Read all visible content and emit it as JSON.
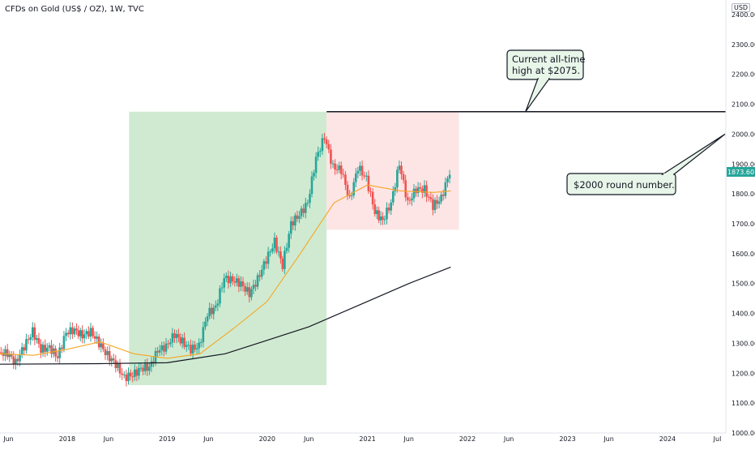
{
  "header": {
    "title": "CFDs on Gold (US$ / OZ), 1W, TVC",
    "currency_badge": "USD"
  },
  "colors": {
    "up": "#26a69a",
    "down": "#ef5350",
    "ma_short": "#f5a623",
    "ma_long": "#131722",
    "green_zone": "#c8e6c9",
    "red_zone": "#fde0e0",
    "callout_fill": "#e8f5e9",
    "price_label_bg": "#26a69a"
  },
  "chart_data": {
    "type": "candlestick",
    "title": "CFDs on Gold (US$ / OZ), 1W, TVC",
    "ylim": [
      1000,
      2400
    ],
    "y_ticks": [
      "1000.00",
      "1100.00",
      "1200.00",
      "1300.00",
      "1400.00",
      "1500.00",
      "1600.00",
      "1700.00",
      "1800.00",
      "1900.00",
      "2000.00",
      "2100.00",
      "2200.00",
      "2300.00",
      "2400.00"
    ],
    "y_tick_values": [
      1000,
      1100,
      1200,
      1300,
      1400,
      1500,
      1600,
      1700,
      1800,
      1900,
      2000,
      2100,
      2200,
      2300,
      2400
    ],
    "x_start": "2017-05-01",
    "x_end": "2024-08-01",
    "x_ticks": [
      {
        "label": "Jun",
        "date": "2017-06-01"
      },
      {
        "label": "2018",
        "date": "2018-01-01"
      },
      {
        "label": "Jun",
        "date": "2018-06-01"
      },
      {
        "label": "2019",
        "date": "2019-01-01"
      },
      {
        "label": "Jun",
        "date": "2019-06-01"
      },
      {
        "label": "2020",
        "date": "2020-01-01"
      },
      {
        "label": "Jun",
        "date": "2020-06-01"
      },
      {
        "label": "2021",
        "date": "2021-01-01"
      },
      {
        "label": "Jun",
        "date": "2021-06-01"
      },
      {
        "label": "2022",
        "date": "2022-01-01"
      },
      {
        "label": "Jun",
        "date": "2022-06-01"
      },
      {
        "label": "2023",
        "date": "2023-01-01"
      },
      {
        "label": "Jun",
        "date": "2023-06-01"
      },
      {
        "label": "2024",
        "date": "2024-01-01"
      },
      {
        "label": "Jul",
        "date": "2024-07-01"
      }
    ],
    "last_price": "1873.60",
    "last_price_value": 1873.6,
    "close_series": [
      {
        "date": "2017-05-01",
        "close": 1270
      },
      {
        "date": "2017-06-01",
        "close": 1265
      },
      {
        "date": "2017-07-01",
        "close": 1235
      },
      {
        "date": "2017-08-01",
        "close": 1290
      },
      {
        "date": "2017-09-01",
        "close": 1340
      },
      {
        "date": "2017-10-01",
        "close": 1280
      },
      {
        "date": "2017-11-01",
        "close": 1285
      },
      {
        "date": "2017-12-01",
        "close": 1255
      },
      {
        "date": "2018-01-01",
        "close": 1335
      },
      {
        "date": "2018-02-01",
        "close": 1345
      },
      {
        "date": "2018-03-01",
        "close": 1325
      },
      {
        "date": "2018-04-01",
        "close": 1340
      },
      {
        "date": "2018-05-01",
        "close": 1300
      },
      {
        "date": "2018-06-01",
        "close": 1260
      },
      {
        "date": "2018-07-01",
        "close": 1230
      },
      {
        "date": "2018-08-01",
        "close": 1185
      },
      {
        "date": "2018-09-01",
        "close": 1195
      },
      {
        "date": "2018-10-01",
        "close": 1215
      },
      {
        "date": "2018-11-01",
        "close": 1220
      },
      {
        "date": "2018-12-01",
        "close": 1275
      },
      {
        "date": "2019-01-01",
        "close": 1290
      },
      {
        "date": "2019-02-01",
        "close": 1330
      },
      {
        "date": "2019-03-01",
        "close": 1305
      },
      {
        "date": "2019-04-01",
        "close": 1280
      },
      {
        "date": "2019-05-01",
        "close": 1290
      },
      {
        "date": "2019-06-01",
        "close": 1400
      },
      {
        "date": "2019-07-01",
        "close": 1420
      },
      {
        "date": "2019-08-01",
        "close": 1520
      },
      {
        "date": "2019-09-01",
        "close": 1510
      },
      {
        "date": "2019-10-01",
        "close": 1500
      },
      {
        "date": "2019-11-01",
        "close": 1465
      },
      {
        "date": "2019-12-01",
        "close": 1515
      },
      {
        "date": "2020-01-01",
        "close": 1580
      },
      {
        "date": "2020-02-01",
        "close": 1640
      },
      {
        "date": "2020-03-01",
        "close": 1560
      },
      {
        "date": "2020-04-01",
        "close": 1700
      },
      {
        "date": "2020-05-01",
        "close": 1730
      },
      {
        "date": "2020-06-01",
        "close": 1770
      },
      {
        "date": "2020-07-01",
        "close": 1920
      },
      {
        "date": "2020-08-01",
        "close": 1990
      },
      {
        "date": "2020-09-01",
        "close": 1890
      },
      {
        "date": "2020-10-01",
        "close": 1880
      },
      {
        "date": "2020-11-01",
        "close": 1780
      },
      {
        "date": "2020-12-01",
        "close": 1890
      },
      {
        "date": "2021-01-01",
        "close": 1850
      },
      {
        "date": "2021-02-01",
        "close": 1740
      },
      {
        "date": "2021-03-01",
        "close": 1710
      },
      {
        "date": "2021-04-01",
        "close": 1770
      },
      {
        "date": "2021-05-01",
        "close": 1900
      },
      {
        "date": "2021-06-01",
        "close": 1770
      },
      {
        "date": "2021-07-01",
        "close": 1815
      },
      {
        "date": "2021-08-01",
        "close": 1815
      },
      {
        "date": "2021-09-01",
        "close": 1760
      },
      {
        "date": "2021-10-01",
        "close": 1785
      },
      {
        "date": "2021-11-01",
        "close": 1873.6
      }
    ],
    "ma_short_series": [
      {
        "date": "2017-05-01",
        "value": 1265
      },
      {
        "date": "2017-09-01",
        "value": 1260
      },
      {
        "date": "2018-01-01",
        "value": 1280
      },
      {
        "date": "2018-05-01",
        "value": 1305
      },
      {
        "date": "2018-09-01",
        "value": 1265
      },
      {
        "date": "2019-01-01",
        "value": 1250
      },
      {
        "date": "2019-05-01",
        "value": 1265
      },
      {
        "date": "2019-09-01",
        "value": 1350
      },
      {
        "date": "2020-01-01",
        "value": 1440
      },
      {
        "date": "2020-05-01",
        "value": 1600
      },
      {
        "date": "2020-09-01",
        "value": 1770
      },
      {
        "date": "2021-01-01",
        "value": 1830
      },
      {
        "date": "2021-05-01",
        "value": 1810
      },
      {
        "date": "2021-09-01",
        "value": 1805
      },
      {
        "date": "2021-11-01",
        "value": 1810
      }
    ],
    "ma_long_series": [
      {
        "date": "2017-05-01",
        "value": 1230
      },
      {
        "date": "2018-05-01",
        "value": 1232
      },
      {
        "date": "2019-01-01",
        "value": 1235
      },
      {
        "date": "2019-08-01",
        "value": 1265
      },
      {
        "date": "2020-01-01",
        "value": 1310
      },
      {
        "date": "2020-06-01",
        "value": 1355
      },
      {
        "date": "2021-01-01",
        "value": 1440
      },
      {
        "date": "2021-06-01",
        "value": 1500
      },
      {
        "date": "2021-11-01",
        "value": 1555
      }
    ],
    "zones": [
      {
        "name": "green",
        "x_start": "2018-08-15",
        "x_end": "2020-08-05",
        "y_low": 1160,
        "y_high": 2075
      },
      {
        "name": "red",
        "x_start": "2020-08-05",
        "x_end": "2021-12-01",
        "y_low": 1680,
        "y_high": 2075
      }
    ],
    "horizontal_line": {
      "x_start": "2020-08-05",
      "y": 2075
    },
    "annotations": [
      {
        "text_lines": [
          "Current all-time",
          "high at $2075."
        ],
        "anchor_date": "2022-08-01",
        "anchor_value": 2075
      },
      {
        "text_lines": [
          "$2000 round number."
        ],
        "anchor_date": "2024-08-01",
        "anchor_value": 2000
      }
    ]
  }
}
